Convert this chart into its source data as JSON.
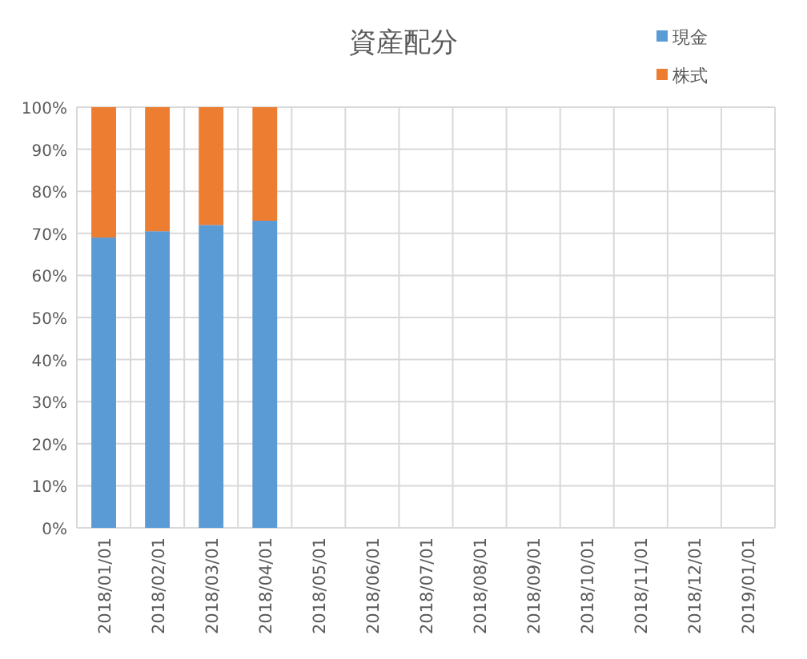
{
  "chart_data": {
    "type": "bar",
    "title": "資産配分",
    "stacked": true,
    "categories": [
      "2018/01/01",
      "2018/02/01",
      "2018/03/01",
      "2018/04/01",
      "2018/05/01",
      "2018/06/01",
      "2018/07/01",
      "2018/08/01",
      "2018/09/01",
      "2018/10/01",
      "2018/11/01",
      "2018/12/01",
      "2019/01/01"
    ],
    "series": [
      {
        "name": "現金",
        "color": "#5b9bd5",
        "values": [
          69,
          70.5,
          72,
          73,
          null,
          null,
          null,
          null,
          null,
          null,
          null,
          null,
          null
        ]
      },
      {
        "name": "株式",
        "color": "#ed7d31",
        "values": [
          31,
          29.5,
          28,
          27,
          null,
          null,
          null,
          null,
          null,
          null,
          null,
          null,
          null
        ]
      }
    ],
    "ylim": [
      0,
      100
    ],
    "yticks": [
      {
        "value": 0,
        "label": "0%"
      },
      {
        "value": 10,
        "label": "10%"
      },
      {
        "value": 20,
        "label": "20%"
      },
      {
        "value": 30,
        "label": "30%"
      },
      {
        "value": 40,
        "label": "40%"
      },
      {
        "value": 50,
        "label": "50%"
      },
      {
        "value": 60,
        "label": "60%"
      },
      {
        "value": 70,
        "label": "70%"
      },
      {
        "value": 80,
        "label": "80%"
      },
      {
        "value": 90,
        "label": "90%"
      },
      {
        "value": 100,
        "label": "100%"
      }
    ],
    "grid": true,
    "legend": "top right"
  }
}
